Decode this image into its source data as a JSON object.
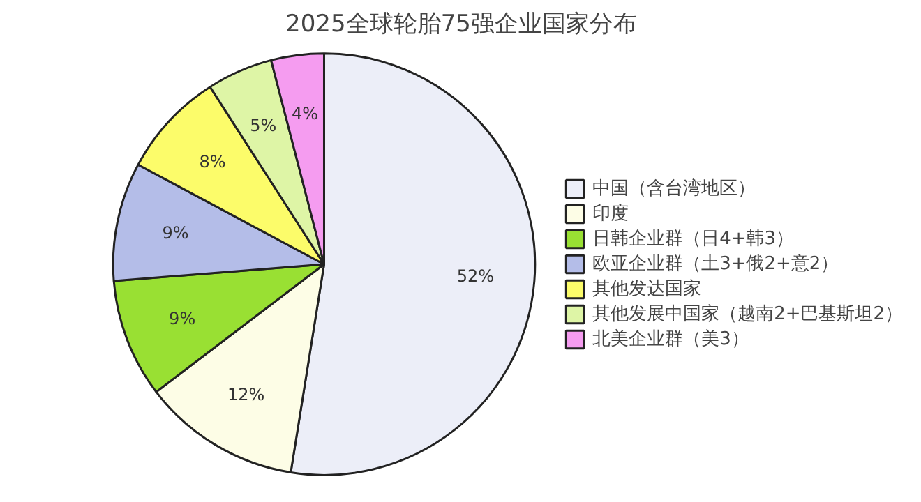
{
  "chart_data": {
    "type": "pie",
    "title": "2025全球轮胎75强企业国家分布",
    "categories": [
      "中国（含台湾地区）",
      "印度",
      "日韩企业群（日4+韩3）",
      "欧亚企业群（土3+俄2+意2）",
      "其他发达国家",
      "其他发展中国家（越南2+巴基斯坦2）",
      "北美企业群（美3）"
    ],
    "values": [
      52,
      12,
      9,
      9,
      8,
      5,
      4
    ],
    "value_labels": [
      "52%",
      "12%",
      "9%",
      "9%",
      "8%",
      "5%",
      "4%"
    ],
    "colors": [
      "#eceef8",
      "#fdfde6",
      "#99e033",
      "#b4bde8",
      "#fcfc6a",
      "#def5a6",
      "#f59cf0"
    ],
    "legend": "right"
  }
}
